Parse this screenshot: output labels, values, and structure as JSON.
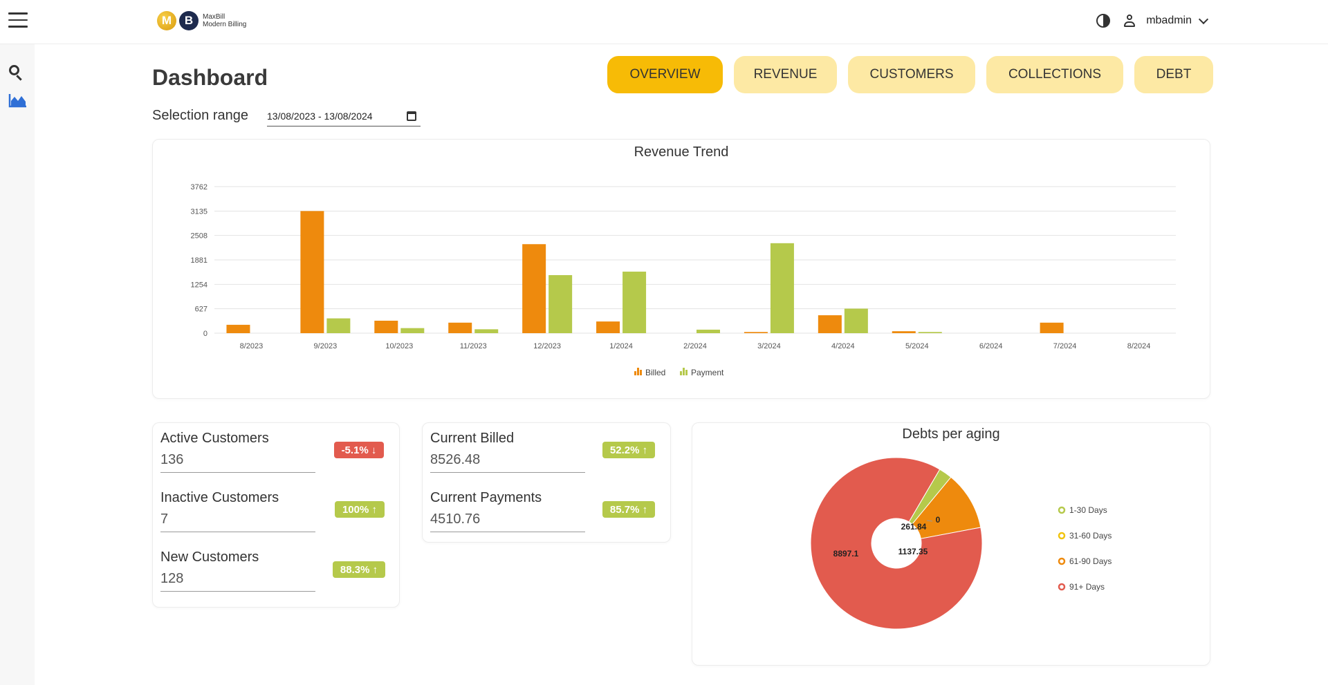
{
  "header": {
    "logo_letter_1": "M",
    "logo_letter_2": "B",
    "logo_line_1": "MaxBill",
    "logo_line_2": "Modern Billing",
    "username": "mbadmin"
  },
  "sidebar": {
    "items": [
      {
        "icon": "search-icon"
      },
      {
        "icon": "area-chart-icon"
      }
    ]
  },
  "page": {
    "title": "Dashboard",
    "selection_label": "Selection range",
    "range_value": "13/08/2023 - 13/08/2024"
  },
  "tabs": [
    {
      "label": "OVERVIEW",
      "active": true
    },
    {
      "label": "REVENUE",
      "active": false
    },
    {
      "label": "CUSTOMERS",
      "active": false
    },
    {
      "label": "COLLECTIONS",
      "active": false
    },
    {
      "label": "DEBT",
      "active": false
    }
  ],
  "stats": {
    "active": {
      "label": "Active Customers",
      "value": "136",
      "badge": "-5.1% ↓",
      "trend": "down"
    },
    "inactive": {
      "label": "Inactive Customers",
      "value": "7",
      "badge": "100% ↑",
      "trend": "up"
    },
    "new": {
      "label": "New Customers",
      "value": "128",
      "badge": "88.3% ↑",
      "trend": "up"
    },
    "billed": {
      "label": "Current Billed",
      "value": "8526.48",
      "badge": "52.2% ↑",
      "trend": "up"
    },
    "payments": {
      "label": "Current Payments",
      "value": "4510.76",
      "badge": "85.7% ↑",
      "trend": "up"
    }
  },
  "colors": {
    "billed": "#ee8a0d",
    "payment": "#b5c94b",
    "accent": "#f7bb06",
    "tab_bg": "#fde9a4",
    "red": "#e25b4e",
    "yellow": "#f1c40f"
  },
  "chart_data": [
    {
      "type": "bar",
      "title": "Revenue Trend",
      "categories": [
        "8/2023",
        "9/2023",
        "10/2023",
        "11/2023",
        "12/2023",
        "1/2024",
        "2/2024",
        "3/2024",
        "4/2024",
        "5/2024",
        "6/2024",
        "7/2024",
        "8/2024"
      ],
      "series": [
        {
          "name": "Billed",
          "values": [
            215,
            3135,
            320,
            270,
            2285,
            300,
            0,
            30,
            460,
            50,
            0,
            270,
            0
          ]
        },
        {
          "name": "Payment",
          "values": [
            0,
            380,
            130,
            100,
            1490,
            1580,
            90,
            2310,
            630,
            30,
            0,
            0,
            0
          ]
        }
      ],
      "yticks": [
        0,
        627,
        1254,
        1881,
        2508,
        3135,
        3762
      ],
      "ylim": [
        0,
        3762
      ],
      "grid": true,
      "legend_position": "bottom"
    },
    {
      "type": "pie",
      "title": "Debts per aging",
      "labels": [
        "1-30 Days",
        "31-60 Days",
        "61-90 Days",
        "91+ Days"
      ],
      "values": [
        261.84,
        0,
        1137.35,
        8897.1
      ],
      "value_labels": [
        "261.84",
        "0",
        "1137.35",
        "8897.1"
      ],
      "colors": [
        "#b5c94b",
        "#f1c40f",
        "#ee8a0d",
        "#e25b4e"
      ],
      "legend_position": "right",
      "donut": true
    }
  ]
}
